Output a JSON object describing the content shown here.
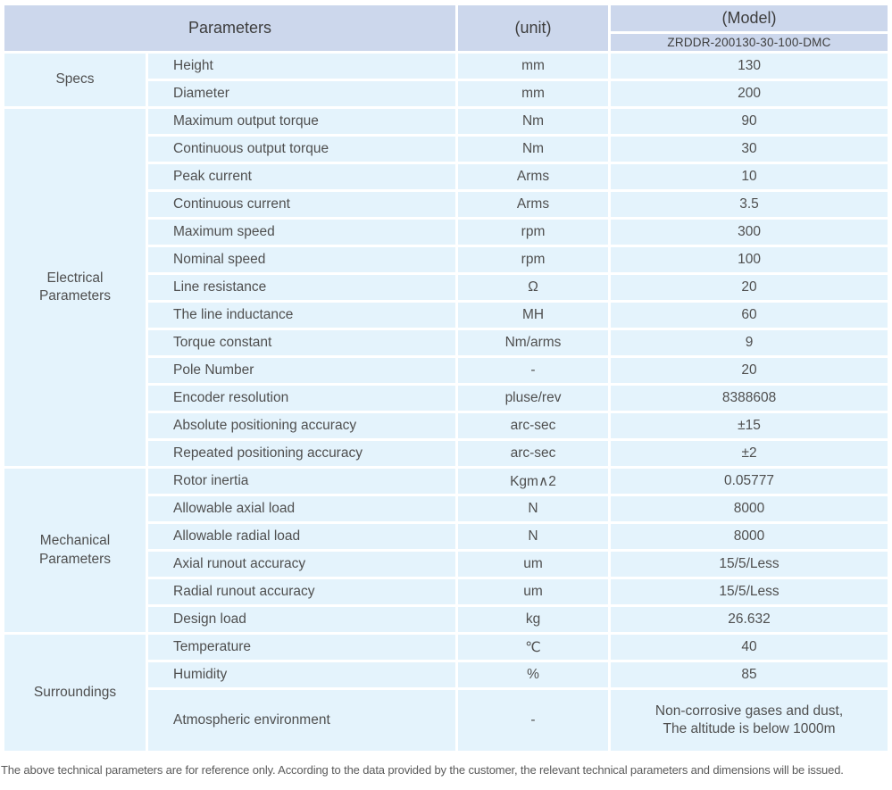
{
  "colors": {
    "header_bg": "#ccd7ec",
    "header_text": "#3d3d3d",
    "row_bg": "#e4f3fc",
    "body_text": "#4f4f4f",
    "note_text": "#5a5a5a"
  },
  "header": {
    "parameters_label": "Parameters",
    "unit_label": "(unit)",
    "model_label": "(Model)",
    "model_value": "ZRDDR-200130-30-100-DMC"
  },
  "sections": [
    {
      "group": "Specs",
      "rows": [
        {
          "param": "Height",
          "unit": "mm",
          "value": "130"
        },
        {
          "param": "Diameter",
          "unit": "mm",
          "value": "200"
        }
      ]
    },
    {
      "group": "Electrical Parameters",
      "rows": [
        {
          "param": "Maximum output torque",
          "unit": "Nm",
          "value": "90"
        },
        {
          "param": "Continuous output torque",
          "unit": "Nm",
          "value": "30"
        },
        {
          "param": "Peak current",
          "unit": "Arms",
          "value": "10"
        },
        {
          "param": "Continuous current",
          "unit": "Arms",
          "value": "3.5"
        },
        {
          "param": "Maximum speed",
          "unit": "rpm",
          "value": "300"
        },
        {
          "param": "Nominal speed",
          "unit": "rpm",
          "value": "100"
        },
        {
          "param": "Line resistance",
          "unit": "Ω",
          "value": "20"
        },
        {
          "param": "The line inductance",
          "unit": "MH",
          "value": "60"
        },
        {
          "param": "Torque constant",
          "unit": "Nm/arms",
          "value": "9"
        },
        {
          "param": "Pole Number",
          "unit": "-",
          "value": "20"
        },
        {
          "param": "Encoder resolution",
          "unit": "pluse/rev",
          "value": "8388608"
        },
        {
          "param": "Absolute positioning accuracy",
          "unit": "arc-sec",
          "value": "±15"
        },
        {
          "param": "Repeated positioning accuracy",
          "unit": "arc-sec",
          "value": "±2"
        }
      ]
    },
    {
      "group": "Mechanical Parameters",
      "rows": [
        {
          "param": "Rotor inertia",
          "unit": "Kgm∧2",
          "value": "0.05777"
        },
        {
          "param": "Allowable axial load",
          "unit": "N",
          "value": "8000"
        },
        {
          "param": "Allowable radial load",
          "unit": "N",
          "value": "8000"
        },
        {
          "param": "Axial runout accuracy",
          "unit": "um",
          "value": "15/5/Less"
        },
        {
          "param": "Radial runout accuracy",
          "unit": "um",
          "value": "15/5/Less"
        },
        {
          "param": "Design load",
          "unit": "kg",
          "value": "26.632"
        }
      ]
    },
    {
      "group": "Surroundings",
      "rows": [
        {
          "param": "Temperature",
          "unit": "℃",
          "value": "40"
        },
        {
          "param": "Humidity",
          "unit": "%",
          "value": "85"
        },
        {
          "param": "Atmospheric environment",
          "unit": "-",
          "value": "Non-corrosive gases and dust,\nThe altitude is below 1000m"
        }
      ]
    }
  ],
  "footer_note": "The above technical parameters are for reference only. According to the data provided by the customer, the relevant technical parameters and dimensions will be issued."
}
